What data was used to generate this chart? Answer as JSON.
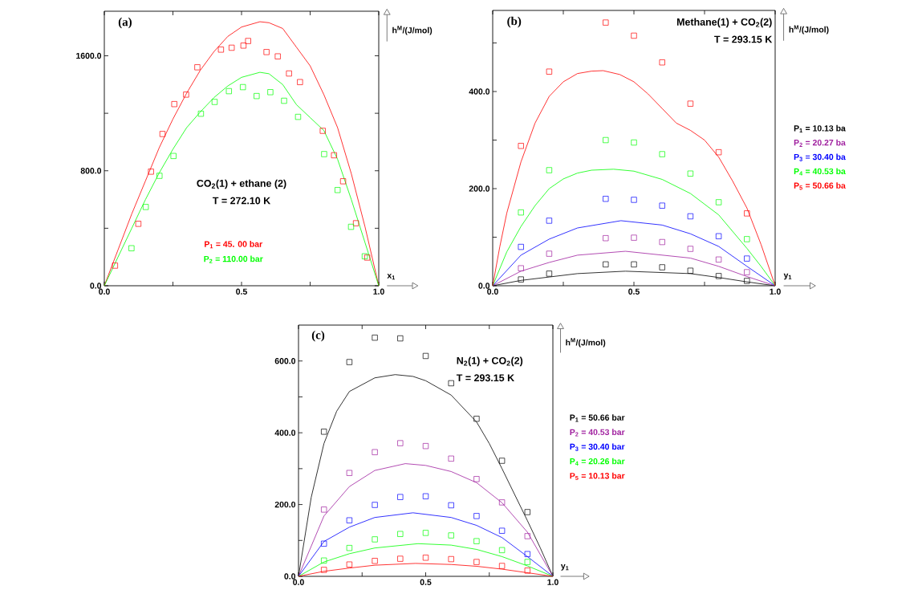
{
  "chart_data": [
    {
      "type": "scatter",
      "title": "(a)",
      "xlabel": "x$_{1}$",
      "ylabel": "h$^{M}$/(J/mol)",
      "marker": "square",
      "xlim": [
        0,
        1
      ],
      "ylim": [
        0,
        1910
      ],
      "xticks": [
        {
          "value": 0,
          "label": "0.0"
        },
        {
          "value": 0.25,
          "label": null
        },
        {
          "value": 0.5,
          "label": "0.5"
        },
        {
          "value": 0.75,
          "label": null
        },
        {
          "value": 1,
          "label": "1.0"
        }
      ],
      "yticks": [
        {
          "value": 0,
          "label": "0.0"
        },
        {
          "value": 400,
          "label": null
        },
        {
          "value": 800,
          "label": "800.0"
        },
        {
          "value": 1200,
          "label": null
        },
        {
          "value": 1600,
          "label": "1600.0"
        }
      ],
      "annotations": [
        "CO$_{2}$(1) + ethane (2)",
        "T = 272.10 K"
      ],
      "series": [
        {
          "name": "P$_{1}$ = 45. 00 bar",
          "color": "#ff0000",
          "x": [
            0.039,
            0.124,
            0.17,
            0.212,
            0.255,
            0.298,
            0.339,
            0.425,
            0.464,
            0.507,
            0.524,
            0.591,
            0.632,
            0.673,
            0.713,
            0.796,
            0.837,
            0.87,
            0.917,
            0.958
          ],
          "values": [
            140,
            431,
            794,
            1056,
            1264,
            1330,
            1520,
            1643,
            1656,
            1671,
            1703,
            1626,
            1596,
            1477,
            1417,
            1078,
            908,
            727,
            435,
            196
          ]
        },
        {
          "name": "P$_{2}$ = 110.00 bar",
          "color": "#00ff00",
          "x": [
            0.099,
            0.151,
            0.201,
            0.252,
            0.352,
            0.402,
            0.454,
            0.505,
            0.555,
            0.605,
            0.655,
            0.706,
            0.801,
            0.85,
            0.899,
            0.949
          ],
          "values": [
            261,
            548,
            765,
            903,
            1197,
            1279,
            1354,
            1382,
            1320,
            1347,
            1287,
            1175,
            916,
            666,
            410,
            205
          ]
        },
        {
          "type": "line",
          "marker": "none",
          "color": "#ff0000",
          "x": [
            0,
            0.05,
            0.1,
            0.15,
            0.2,
            0.25,
            0.3,
            0.35,
            0.4,
            0.45,
            0.5,
            0.567,
            0.6,
            0.65,
            0.7,
            0.75,
            0.8,
            0.85,
            0.9,
            0.95,
            1
          ],
          "values": [
            0,
            250,
            500,
            730,
            960,
            1160,
            1340,
            1500,
            1630,
            1735,
            1800,
            1837,
            1830,
            1790,
            1660,
            1530,
            1330,
            1100,
            780,
            410,
            0
          ]
        },
        {
          "type": "line",
          "marker": "none",
          "color": "#00ff00",
          "x": [
            0,
            0.05,
            0.1,
            0.15,
            0.2,
            0.25,
            0.3,
            0.35,
            0.4,
            0.45,
            0.5,
            0.567,
            0.6,
            0.65,
            0.7,
            0.75,
            0.8,
            0.85,
            0.9,
            0.95,
            1
          ],
          "values": [
            0,
            200,
            400,
            600,
            785,
            950,
            1100,
            1210,
            1310,
            1390,
            1450,
            1485,
            1475,
            1400,
            1260,
            1170,
            1080,
            880,
            600,
            300,
            0
          ]
        }
      ]
    },
    {
      "type": "scatter",
      "title": "(b)",
      "xlabel": "y$_{1}$",
      "ylabel": "h$^{M}$/(J/mol)",
      "marker": "square",
      "legend": "right",
      "xlim": [
        0,
        1
      ],
      "ylim": [
        0,
        567
      ],
      "xticks": [
        {
          "value": 0,
          "label": "0.0"
        },
        {
          "value": 0.25,
          "label": null
        },
        {
          "value": 0.5,
          "label": "0.5"
        },
        {
          "value": 0.75,
          "label": null
        },
        {
          "value": 1,
          "label": "1.0"
        }
      ],
      "yticks": [
        {
          "value": 0,
          "label": "0.0"
        },
        {
          "value": 100,
          "label": null
        },
        {
          "value": 200,
          "label": "200.0"
        },
        {
          "value": 300,
          "label": null
        },
        {
          "value": 400,
          "label": "400.0"
        },
        {
          "value": 500,
          "label": null
        }
      ],
      "annotations": [
        "Methane(1) + CO$_{2}$(2)",
        "T = 293.15 K"
      ],
      "series": [
        {
          "name": "P$_{1}$ = 10.13 ba",
          "color": "#000000",
          "x": [
            0.1,
            0.2,
            0.4,
            0.5,
            0.6,
            0.7,
            0.8,
            0.9
          ],
          "values": [
            13,
            25,
            44,
            44,
            38,
            31,
            20,
            10
          ]
        },
        {
          "name": "P$_{2}$ = 20.27 ba",
          "color": "#a0209f",
          "x": [
            0.1,
            0.2,
            0.4,
            0.5,
            0.6,
            0.7,
            0.8,
            0.9
          ],
          "values": [
            36,
            66,
            98,
            99,
            90,
            76,
            54,
            28
          ]
        },
        {
          "name": "P$_{3}$ = 30.40 ba",
          "color": "#0000ff",
          "x": [
            0.1,
            0.2,
            0.4,
            0.5,
            0.6,
            0.7,
            0.8,
            0.9
          ],
          "values": [
            80,
            134,
            179,
            177,
            165,
            143,
            102,
            56
          ]
        },
        {
          "name": "P$_{4}$ = 40.53 ba",
          "color": "#00ff00",
          "x": [
            0.1,
            0.2,
            0.4,
            0.5,
            0.6,
            0.7,
            0.8,
            0.9
          ],
          "values": [
            151,
            238,
            300,
            295,
            271,
            231,
            172,
            96
          ]
        },
        {
          "name": "P$_{5}$ = 50.66 ba",
          "color": "#ff0000",
          "x": [
            0.1,
            0.2,
            0.4,
            0.5,
            0.6,
            0.7,
            0.8,
            0.9
          ],
          "values": [
            288,
            441,
            542,
            515,
            460,
            375,
            275,
            149
          ]
        },
        {
          "type": "line",
          "marker": "none",
          "color": "#000000",
          "x": [
            0,
            0.1,
            0.2,
            0.3,
            0.47,
            0.7,
            0.8,
            0.9,
            1
          ],
          "values": [
            0,
            11,
            18,
            25,
            30,
            25,
            17,
            8,
            0
          ]
        },
        {
          "type": "line",
          "marker": "none",
          "color": "#a0209f",
          "x": [
            0,
            0.1,
            0.2,
            0.3,
            0.47,
            0.7,
            0.8,
            0.9,
            1
          ],
          "values": [
            0,
            30,
            48,
            63,
            71,
            57,
            40,
            19,
            0
          ]
        },
        {
          "type": "line",
          "marker": "none",
          "color": "#0000ff",
          "x": [
            0,
            0.1,
            0.2,
            0.3,
            0.454,
            0.6,
            0.7,
            0.8,
            0.9,
            1
          ],
          "values": [
            0,
            63,
            96,
            119,
            134,
            125,
            107,
            81,
            40,
            0
          ]
        },
        {
          "type": "line",
          "marker": "none",
          "color": "#00ff00",
          "x": [
            0,
            0.05,
            0.1,
            0.15,
            0.2,
            0.25,
            0.3,
            0.35,
            0.428,
            0.5,
            0.6,
            0.7,
            0.8,
            0.9,
            0.95,
            1
          ],
          "values": [
            0,
            70,
            122,
            165,
            200,
            220,
            232,
            238,
            240,
            236,
            219,
            190,
            146,
            77,
            40,
            0
          ]
        },
        {
          "type": "line",
          "marker": "none",
          "color": "#ff0000",
          "x": [
            0,
            0.025,
            0.05,
            0.1,
            0.15,
            0.2,
            0.25,
            0.3,
            0.35,
            0.391,
            0.45,
            0.5,
            0.55,
            0.6,
            0.65,
            0.7,
            0.75,
            0.8,
            0.85,
            0.9,
            0.95,
            1
          ],
          "values": [
            0,
            80,
            150,
            255,
            335,
            390,
            420,
            437,
            442,
            443,
            435,
            420,
            395,
            365,
            335,
            320,
            300,
            265,
            215,
            160,
            85,
            0
          ]
        }
      ]
    },
    {
      "type": "scatter",
      "title": "(c)",
      "xlabel": "y$_{1}$",
      "ylabel": "h$^{M}$/(J/mol)",
      "marker": "square",
      "legend": "right",
      "xlim": [
        0,
        1
      ],
      "ylim": [
        0,
        700
      ],
      "xticks": [
        {
          "value": 0,
          "label": "0.0"
        },
        {
          "value": 0.25,
          "label": null
        },
        {
          "value": 0.5,
          "label": "0.5"
        },
        {
          "value": 0.75,
          "label": null
        },
        {
          "value": 1,
          "label": "1.0"
        }
      ],
      "yticks": [
        {
          "value": 0,
          "label": "0.0"
        },
        {
          "value": 100,
          "label": null
        },
        {
          "value": 200,
          "label": "200.0"
        },
        {
          "value": 300,
          "label": null
        },
        {
          "value": 400,
          "label": "400.0"
        },
        {
          "value": 500,
          "label": null
        },
        {
          "value": 600,
          "label": "600.0"
        }
      ],
      "annotations": [
        "N$_{2}$(1) + CO$_{2}$(2)",
        "T = 293.15 K"
      ],
      "series": [
        {
          "name": "P$_{1}$ = 50.66 bar",
          "color": "#000000",
          "x": [
            0.1,
            0.2,
            0.3,
            0.4,
            0.5,
            0.6,
            0.7,
            0.8,
            0.9
          ],
          "values": [
            403,
            597,
            665,
            663,
            614,
            538,
            439,
            322,
            179
          ]
        },
        {
          "name": "P$_{2}$ = 40.53 bar",
          "color": "#a0209f",
          "x": [
            0.1,
            0.2,
            0.3,
            0.4,
            0.5,
            0.6,
            0.7,
            0.8,
            0.9
          ],
          "values": [
            186,
            288,
            346,
            371,
            363,
            328,
            271,
            206,
            112
          ]
        },
        {
          "name": "P$_{3}$ = 30.40 bar",
          "color": "#0000ff",
          "x": [
            0.1,
            0.2,
            0.3,
            0.4,
            0.5,
            0.6,
            0.7,
            0.8,
            0.9
          ],
          "values": [
            91,
            156,
            199,
            221,
            223,
            198,
            168,
            127,
            62
          ]
        },
        {
          "name": "P$_{4}$ = 20.26 bar",
          "color": "#00ff00",
          "x": [
            0.1,
            0.2,
            0.3,
            0.4,
            0.5,
            0.6,
            0.7,
            0.8,
            0.9
          ],
          "values": [
            44,
            79,
            103,
            118,
            121,
            114,
            98,
            73,
            40
          ]
        },
        {
          "name": "P$_{5}$ = 10.13 bar",
          "color": "#ff0000",
          "x": [
            0.1,
            0.2,
            0.3,
            0.4,
            0.5,
            0.6,
            0.7,
            0.8,
            0.9
          ],
          "values": [
            18,
            33,
            43,
            49,
            52,
            48,
            40,
            29,
            16
          ]
        },
        {
          "type": "line",
          "marker": "none",
          "color": "#000000",
          "x": [
            0,
            0.05,
            0.1,
            0.15,
            0.2,
            0.3,
            0.38,
            0.45,
            0.5,
            0.6,
            0.7,
            0.75,
            0.8,
            0.9,
            0.95,
            1
          ],
          "values": [
            0,
            220,
            370,
            460,
            515,
            553,
            562,
            557,
            545,
            505,
            430,
            370,
            300,
            155,
            80,
            0
          ]
        },
        {
          "type": "line",
          "marker": "none",
          "color": "#a0209f",
          "x": [
            0,
            0.1,
            0.2,
            0.3,
            0.42,
            0.5,
            0.6,
            0.7,
            0.8,
            0.9,
            1
          ],
          "values": [
            0,
            168,
            250,
            295,
            314,
            309,
            292,
            261,
            205,
            123,
            0
          ]
        },
        {
          "type": "line",
          "marker": "none",
          "color": "#0000ff",
          "x": [
            0,
            0.1,
            0.2,
            0.3,
            0.45,
            0.6,
            0.7,
            0.8,
            0.9,
            1
          ],
          "values": [
            0,
            97,
            137,
            164,
            177,
            164,
            142,
            108,
            55,
            0
          ]
        },
        {
          "type": "line",
          "marker": "none",
          "color": "#00ff00",
          "x": [
            0,
            0.1,
            0.2,
            0.3,
            0.47,
            0.6,
            0.7,
            0.8,
            0.9,
            1
          ],
          "values": [
            0,
            40,
            63,
            79,
            91,
            87,
            75,
            55,
            29,
            0
          ]
        },
        {
          "type": "line",
          "marker": "none",
          "color": "#ff0000",
          "x": [
            0,
            0.1,
            0.2,
            0.3,
            0.46,
            0.6,
            0.7,
            0.8,
            0.9,
            1
          ],
          "values": [
            0,
            14,
            23,
            31,
            36,
            33,
            28,
            20,
            10,
            0
          ]
        }
      ]
    }
  ]
}
